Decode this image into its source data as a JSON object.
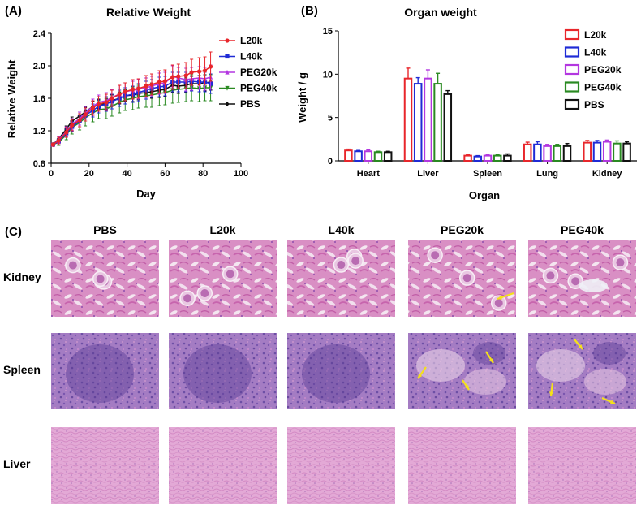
{
  "panels": {
    "a": "(A)",
    "b": "(B)",
    "c": "(C)"
  },
  "colors": {
    "L20k": "#e8262b",
    "L40k": "#1f2bd6",
    "PEG20k": "#b337e0",
    "PEG40k": "#2a8a22",
    "PBS": "#111111",
    "arrow": "#f5e11a"
  },
  "chart_data": [
    {
      "type": "line",
      "title": "Relative Weight",
      "xlabel": "Day",
      "ylabel": "Relative Weight",
      "xlim": [
        0,
        100
      ],
      "ylim": [
        0.8,
        2.4
      ],
      "xticks": [
        0,
        20,
        40,
        60,
        80,
        100
      ],
      "yticks": [
        0.8,
        1.2,
        1.6,
        2.0,
        2.4
      ],
      "ytick_labels": [
        "0.8",
        "1.2",
        "1.6",
        "2.0",
        "2.4"
      ],
      "legend_position": "top-right",
      "x": [
        1,
        4,
        8,
        11,
        15,
        18,
        22,
        25,
        29,
        32,
        36,
        39,
        43,
        46,
        50,
        53,
        57,
        60,
        64,
        67,
        71,
        74,
        78,
        81,
        84
      ],
      "series": [
        {
          "name": "L20k",
          "marker": "circle",
          "values": [
            1.03,
            1.08,
            1.18,
            1.27,
            1.33,
            1.4,
            1.48,
            1.53,
            1.55,
            1.6,
            1.65,
            1.68,
            1.71,
            1.72,
            1.75,
            1.77,
            1.8,
            1.81,
            1.86,
            1.87,
            1.88,
            1.92,
            1.93,
            1.94,
            1.99
          ],
          "errors": [
            0.02,
            0.04,
            0.06,
            0.07,
            0.08,
            0.08,
            0.09,
            0.09,
            0.1,
            0.1,
            0.11,
            0.11,
            0.12,
            0.12,
            0.13,
            0.13,
            0.14,
            0.14,
            0.15,
            0.15,
            0.16,
            0.16,
            0.17,
            0.17,
            0.18
          ]
        },
        {
          "name": "L40k",
          "marker": "square",
          "values": [
            1.03,
            1.07,
            1.17,
            1.25,
            1.32,
            1.39,
            1.45,
            1.5,
            1.53,
            1.56,
            1.6,
            1.63,
            1.65,
            1.67,
            1.7,
            1.72,
            1.74,
            1.75,
            1.8,
            1.8,
            1.8,
            1.81,
            1.8,
            1.8,
            1.78
          ],
          "errors": [
            0.02,
            0.03,
            0.05,
            0.06,
            0.07,
            0.07,
            0.08,
            0.08,
            0.09,
            0.09,
            0.1,
            0.1,
            0.1,
            0.11,
            0.11,
            0.11,
            0.12,
            0.12,
            0.12,
            0.12,
            0.12,
            0.12,
            0.12,
            0.12,
            0.12
          ]
        },
        {
          "name": "PEG20k",
          "marker": "triangle",
          "values": [
            1.03,
            1.09,
            1.19,
            1.28,
            1.35,
            1.42,
            1.5,
            1.55,
            1.57,
            1.61,
            1.65,
            1.68,
            1.7,
            1.71,
            1.73,
            1.75,
            1.78,
            1.79,
            1.87,
            1.85,
            1.83,
            1.84,
            1.85,
            1.84,
            1.86
          ],
          "errors": [
            0.02,
            0.04,
            0.06,
            0.07,
            0.08,
            0.08,
            0.09,
            0.09,
            0.1,
            0.1,
            0.11,
            0.11,
            0.11,
            0.12,
            0.12,
            0.12,
            0.13,
            0.13,
            0.13,
            0.13,
            0.14,
            0.14,
            0.14,
            0.14,
            0.15
          ]
        },
        {
          "name": "PEG40k",
          "marker": "triangle-down",
          "values": [
            1.03,
            1.06,
            1.15,
            1.24,
            1.3,
            1.36,
            1.42,
            1.46,
            1.47,
            1.5,
            1.55,
            1.58,
            1.6,
            1.62,
            1.63,
            1.64,
            1.66,
            1.67,
            1.7,
            1.71,
            1.72,
            1.73,
            1.72,
            1.73,
            1.73
          ],
          "errors": [
            0.02,
            0.04,
            0.06,
            0.08,
            0.09,
            0.1,
            0.11,
            0.11,
            0.12,
            0.12,
            0.13,
            0.13,
            0.14,
            0.14,
            0.14,
            0.15,
            0.15,
            0.15,
            0.16,
            0.16,
            0.16,
            0.16,
            0.16,
            0.16,
            0.16
          ]
        },
        {
          "name": "PBS",
          "marker": "diamond",
          "values": [
            1.03,
            1.1,
            1.22,
            1.32,
            1.38,
            1.43,
            1.5,
            1.53,
            1.53,
            1.57,
            1.6,
            1.63,
            1.64,
            1.66,
            1.67,
            1.68,
            1.7,
            1.71,
            1.76,
            1.75,
            1.76,
            1.78,
            1.78,
            1.79,
            1.8
          ],
          "errors": [
            0.02,
            0.03,
            0.04,
            0.05,
            0.05,
            0.06,
            0.06,
            0.06,
            0.07,
            0.07,
            0.07,
            0.07,
            0.08,
            0.08,
            0.08,
            0.08,
            0.09,
            0.09,
            0.09,
            0.09,
            0.09,
            0.09,
            0.1,
            0.1,
            0.1
          ]
        }
      ]
    },
    {
      "type": "bar",
      "title": "Organ weight",
      "xlabel": "Organ",
      "ylabel": "Weight / g",
      "ylim": [
        0,
        15
      ],
      "yticks": [
        0,
        5,
        10,
        15
      ],
      "categories": [
        "Heart",
        "Liver",
        "Spleen",
        "Lung",
        "Kidney"
      ],
      "legend_position": "top-right",
      "series": [
        {
          "name": "L20k",
          "values": [
            1.2,
            9.5,
            0.6,
            1.9,
            2.1
          ],
          "errors": [
            0.15,
            1.2,
            0.1,
            0.25,
            0.25
          ]
        },
        {
          "name": "L40k",
          "values": [
            1.1,
            8.9,
            0.5,
            1.9,
            2.1
          ],
          "errors": [
            0.1,
            0.7,
            0.1,
            0.3,
            0.25
          ]
        },
        {
          "name": "PEG20k",
          "values": [
            1.1,
            9.5,
            0.6,
            1.7,
            2.2
          ],
          "errors": [
            0.15,
            1.0,
            0.1,
            0.2,
            0.2
          ]
        },
        {
          "name": "PEG40k",
          "values": [
            1.0,
            8.9,
            0.6,
            1.7,
            2.0
          ],
          "errors": [
            0.1,
            1.2,
            0.1,
            0.2,
            0.3
          ]
        },
        {
          "name": "PBS",
          "values": [
            1.0,
            7.7,
            0.6,
            1.7,
            2.0
          ],
          "errors": [
            0.1,
            0.4,
            0.2,
            0.3,
            0.2
          ]
        }
      ]
    }
  ],
  "histology": {
    "columns": [
      "PBS",
      "L20k",
      "L40k",
      "PEG20k",
      "PEG40k"
    ],
    "rows": [
      {
        "label": "Kidney",
        "tissue": "kidney"
      },
      {
        "label": "Spleen",
        "tissue": "spleen"
      },
      {
        "label": "Liver",
        "tissue": "liver"
      }
    ]
  }
}
